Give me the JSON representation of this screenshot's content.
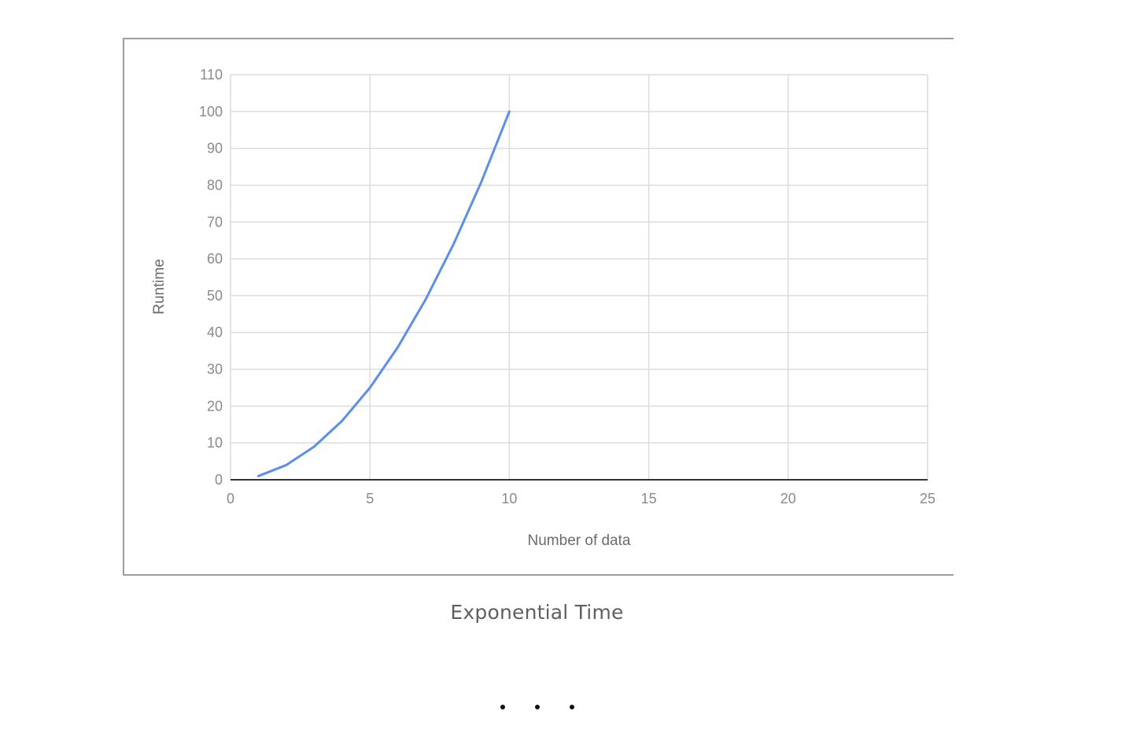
{
  "caption": "Exponential Time",
  "separator": "...",
  "chart_data": {
    "type": "line",
    "title": "",
    "xlabel": "Number of data",
    "ylabel": "Runtime",
    "xlim": [
      0,
      25
    ],
    "ylim": [
      0,
      110
    ],
    "xticks": [
      0,
      5,
      10,
      15,
      20,
      25
    ],
    "yticks": [
      0,
      10,
      20,
      30,
      40,
      50,
      60,
      70,
      80,
      90,
      100,
      110
    ],
    "grid": true,
    "legend": "none",
    "series": [
      {
        "color": "#5b8fe8",
        "x": [
          1,
          2,
          3,
          4,
          5,
          6,
          7,
          8,
          9,
          10
        ],
        "y": [
          1,
          4,
          9,
          16,
          25,
          36,
          49,
          64,
          81,
          100
        ]
      }
    ],
    "colors": {
      "grid": "#dcdcdc",
      "axis": "#333333",
      "line": "#5b8fe8"
    }
  }
}
